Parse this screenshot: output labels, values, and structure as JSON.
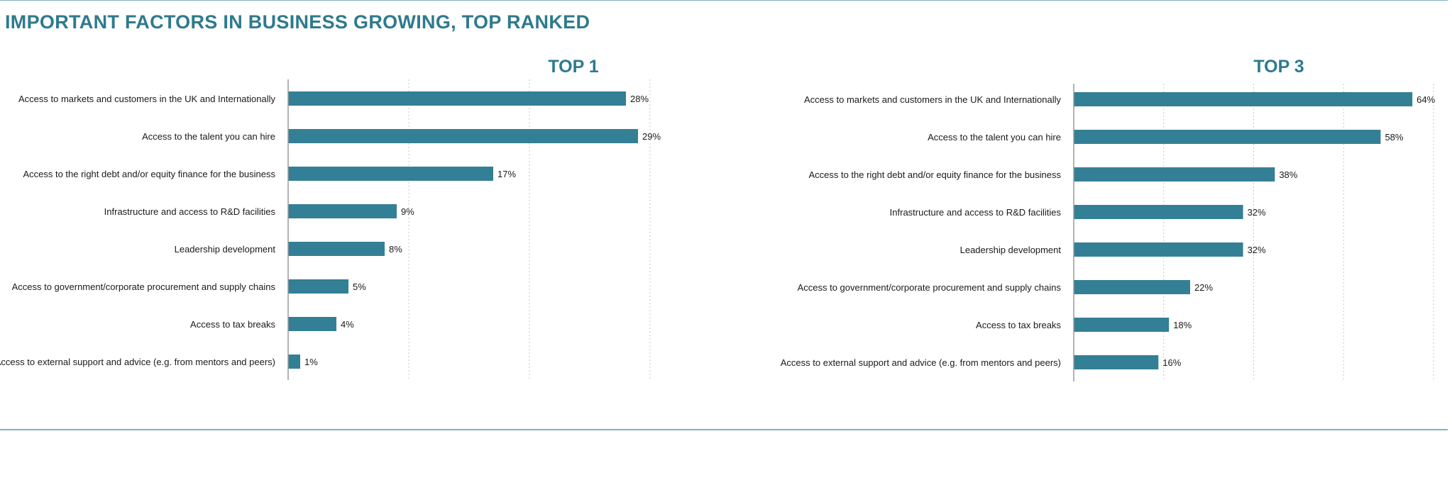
{
  "page_title": "IMPORTANT FACTORS IN BUSINESS GROWING, TOP RANKED",
  "colors": {
    "bar": "#337f96",
    "title": "#2e7a8e",
    "text": "#1a1a1a",
    "grid": "#c9c9c9",
    "axis": "#9a9a9a"
  },
  "chart_data": [
    {
      "type": "bar",
      "orientation": "horizontal",
      "title": "TOP 1",
      "categories": [
        "Access to markets and customers in the UK and Internationally",
        "Access to the talent you can hire",
        "Access to the right debt and/or equity finance for the business",
        "Infrastructure and access to R&D facilities",
        "Leadership development",
        "Access to government/corporate procurement and supply chains",
        "Access to tax breaks",
        "Access to external support and advice (e.g. from mentors and peers)"
      ],
      "values": [
        28,
        29,
        17,
        9,
        8,
        5,
        4,
        1
      ],
      "value_labels": [
        "28%",
        "29%",
        "17%",
        "9%",
        "8%",
        "5%",
        "4%",
        "1%"
      ],
      "unit": "%",
      "xlim": [
        0,
        40
      ],
      "grid": true,
      "grid_step": 10
    },
    {
      "type": "bar",
      "orientation": "horizontal",
      "title": "TOP 3",
      "categories": [
        "Access to markets and customers in the UK and Internationally",
        "Access to the talent you can hire",
        "Access to the right debt and/or equity finance for the business",
        "Infrastructure and access to R&D facilities",
        "Leadership development",
        "Access to government/corporate procurement and supply chains",
        "Access to tax breaks",
        "Access to external support and advice (e.g. from mentors and peers)"
      ],
      "values": [
        64,
        58,
        38,
        32,
        32,
        22,
        18,
        16
      ],
      "value_labels": [
        "64%",
        "58%",
        "38%",
        "32%",
        "32%",
        "22%",
        "18%",
        "16%"
      ],
      "unit": "%",
      "xlim": [
        0,
        68
      ],
      "grid": true,
      "grid_step": 17
    }
  ]
}
